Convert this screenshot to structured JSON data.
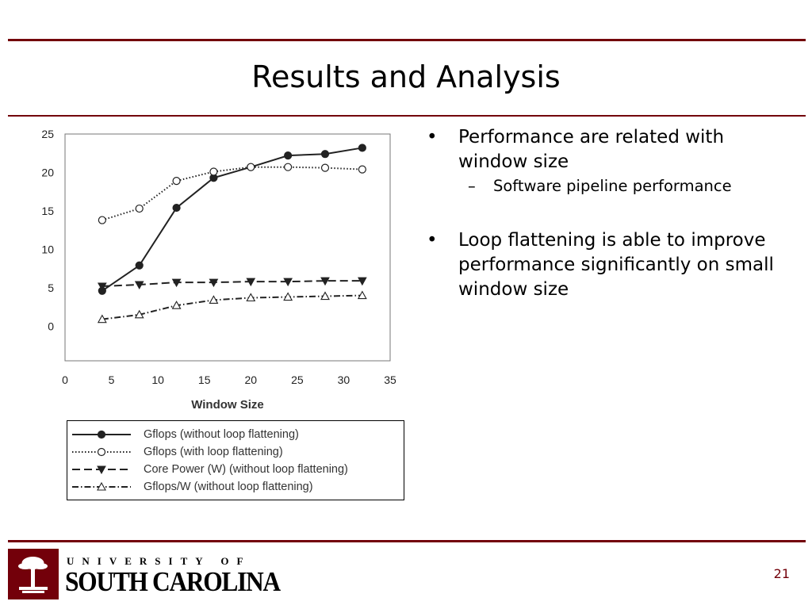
{
  "slide": {
    "title": "Results and Analysis",
    "page_number": "21",
    "brand_color": "#73000a"
  },
  "bullets": [
    {
      "text": "Performance are related with window size",
      "sub": [
        "Software pipeline performance"
      ]
    },
    {
      "text": "Loop flattening is able to improve performance significantly on small window size",
      "sub": []
    }
  ],
  "logo": {
    "top_text": "UNIVERSITY OF",
    "bottom_text": "SOUTH CAROLINA",
    "emblem_icon": "palmetto-tree-icon"
  },
  "chart_data": {
    "type": "line",
    "xlabel": "Window Size",
    "ylabel": "",
    "xlim": [
      0,
      35
    ],
    "ylim": [
      -4.5,
      25
    ],
    "xticks": [
      0,
      5,
      10,
      15,
      20,
      25,
      30,
      35
    ],
    "yticks": [
      0,
      5,
      10,
      15,
      20,
      25
    ],
    "grid": false,
    "legend_position": "bottom",
    "x": [
      4,
      8,
      12,
      16,
      20,
      24,
      28,
      32
    ],
    "series": [
      {
        "name": "Gflops (without loop flattening)",
        "values": [
          4.6,
          7.9,
          15.4,
          19.3,
          20.7,
          22.2,
          22.4,
          23.2
        ],
        "line_style": "solid",
        "marker": "filled-circle",
        "color": "#222222"
      },
      {
        "name": "Gflops (with loop flattening)",
        "values": [
          13.8,
          15.3,
          18.9,
          20.1,
          20.7,
          20.7,
          20.6,
          20.4
        ],
        "line_style": "dotted",
        "marker": "open-circle",
        "color": "#222222"
      },
      {
        "name": "Core Power (W) (without loop flattening)",
        "values": [
          5.2,
          5.4,
          5.7,
          5.7,
          5.8,
          5.8,
          5.9,
          5.9
        ],
        "line_style": "dashed",
        "marker": "filled-triangle-down",
        "color": "#222222"
      },
      {
        "name": "Gflops/W (without loop flattening)",
        "values": [
          0.9,
          1.5,
          2.7,
          3.4,
          3.7,
          3.8,
          3.9,
          4.0
        ],
        "line_style": "dash-dot",
        "marker": "open-triangle-up",
        "color": "#222222"
      }
    ]
  }
}
